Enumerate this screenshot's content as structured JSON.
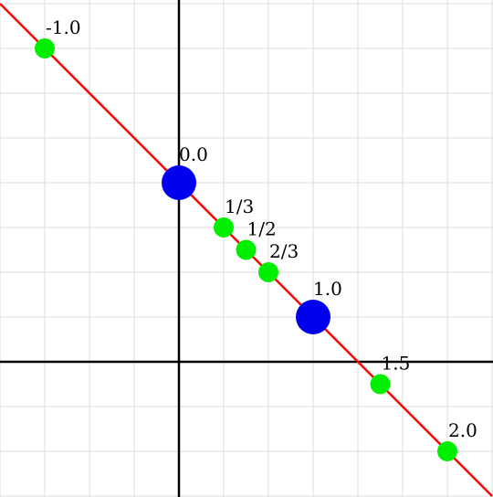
{
  "chart_data": {
    "type": "scatter",
    "title": "",
    "xlabel": "",
    "ylabel": "",
    "xlim": [
      -4,
      7
    ],
    "ylim": [
      -3,
      8
    ],
    "grid": true,
    "axis_color": "#000000",
    "grid_color": "#dddddd",
    "line": {
      "color": "#ff0000",
      "from": [
        -4,
        8
      ],
      "to": [
        7,
        -3
      ]
    },
    "points": [
      {
        "label": "-1.0",
        "x": -3,
        "y": 7,
        "color": "#00ee00",
        "kind": "minor"
      },
      {
        "label": "0.0",
        "x": 0,
        "y": 4,
        "color": "#0000ee",
        "kind": "major"
      },
      {
        "label": "1/3",
        "x": 1,
        "y": 3,
        "color": "#00ee00",
        "kind": "minor"
      },
      {
        "label": "1/2",
        "x": 1.5,
        "y": 2.5,
        "color": "#00ee00",
        "kind": "minor"
      },
      {
        "label": "2/3",
        "x": 2,
        "y": 2,
        "color": "#00ee00",
        "kind": "minor"
      },
      {
        "label": "1.0",
        "x": 3,
        "y": 1,
        "color": "#0000ee",
        "kind": "major"
      },
      {
        "label": "1.5",
        "x": 4.5,
        "y": -0.5,
        "color": "#00ee00",
        "kind": "minor"
      },
      {
        "label": "2.0",
        "x": 6,
        "y": -2,
        "color": "#00ee00",
        "kind": "minor"
      }
    ]
  }
}
